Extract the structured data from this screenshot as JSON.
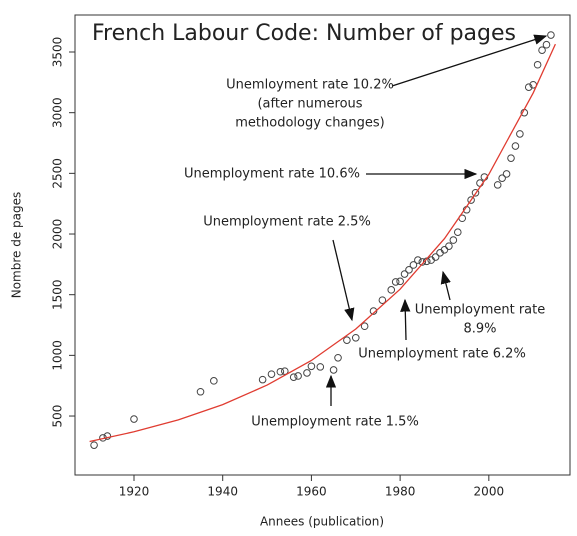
{
  "chart_data": {
    "type": "scatter",
    "title": "French Labour Code: Number of pages",
    "x_label": "Annees (publication)",
    "y_label": "Nombre de pages",
    "xlim": [
      1906.7,
      2018.3
    ],
    "ylim": [
      14,
      3805
    ],
    "xticks": [
      1920,
      1940,
      1960,
      1980,
      2000
    ],
    "yticks": [
      500,
      1000,
      1500,
      2000,
      2500,
      3000,
      3500
    ],
    "series": [
      {
        "type": "scatter",
        "color": "#444444",
        "x": [
          1911,
          1913,
          1914,
          1920,
          1935,
          1938,
          1949,
          1951,
          1953,
          1954,
          1956,
          1957,
          1959,
          1960,
          1962,
          1965,
          1966,
          1968,
          1970,
          1972,
          1974,
          1976,
          1978,
          1979,
          1980,
          1981,
          1982,
          1983,
          1984,
          1985,
          1986,
          1987,
          1988,
          1989,
          1990,
          1991,
          1992,
          1993,
          1994,
          1995,
          1996,
          1997,
          1998,
          1999,
          2002,
          2003,
          2004,
          2005,
          2006,
          2007,
          2008,
          2009,
          2010,
          2011,
          2012,
          2013,
          2014
        ],
        "values": [
          260,
          320,
          335,
          475,
          700,
          790,
          800,
          845,
          865,
          870,
          820,
          830,
          855,
          910,
          905,
          880,
          980,
          1125,
          1145,
          1240,
          1365,
          1455,
          1540,
          1605,
          1610,
          1670,
          1705,
          1745,
          1785,
          1770,
          1775,
          1785,
          1810,
          1845,
          1870,
          1900,
          1950,
          2015,
          2130,
          2200,
          2280,
          2340,
          2420,
          2470,
          2405,
          2460,
          2495,
          2625,
          2725,
          2825,
          3000,
          3210,
          3230,
          3395,
          3515,
          3560,
          3640
        ]
      },
      {
        "type": "line",
        "color": "#e03c31",
        "x": [
          1910,
          1920,
          1930,
          1940,
          1950,
          1960,
          1970,
          1980,
          1990,
          2000,
          2010,
          2015
        ],
        "values": [
          290,
          370,
          468,
          594,
          755,
          958,
          1217,
          1545,
          1962,
          2491,
          3163,
          3565
        ]
      }
    ],
    "annotations": [
      {
        "lines": [
          "Unemloyment rate 10.2%",
          "(after numerous",
          "methodology changes)"
        ]
      },
      {
        "lines": [
          "Unemployment rate 10.6%"
        ]
      },
      {
        "lines": [
          "Unemployment rate 2.5%"
        ]
      },
      {
        "lines": [
          "Unemployment rate",
          "8.9%"
        ]
      },
      {
        "lines": [
          "Unemployment rate 6.2%"
        ]
      },
      {
        "lines": [
          "Unemployment rate 1.5%"
        ]
      }
    ]
  }
}
